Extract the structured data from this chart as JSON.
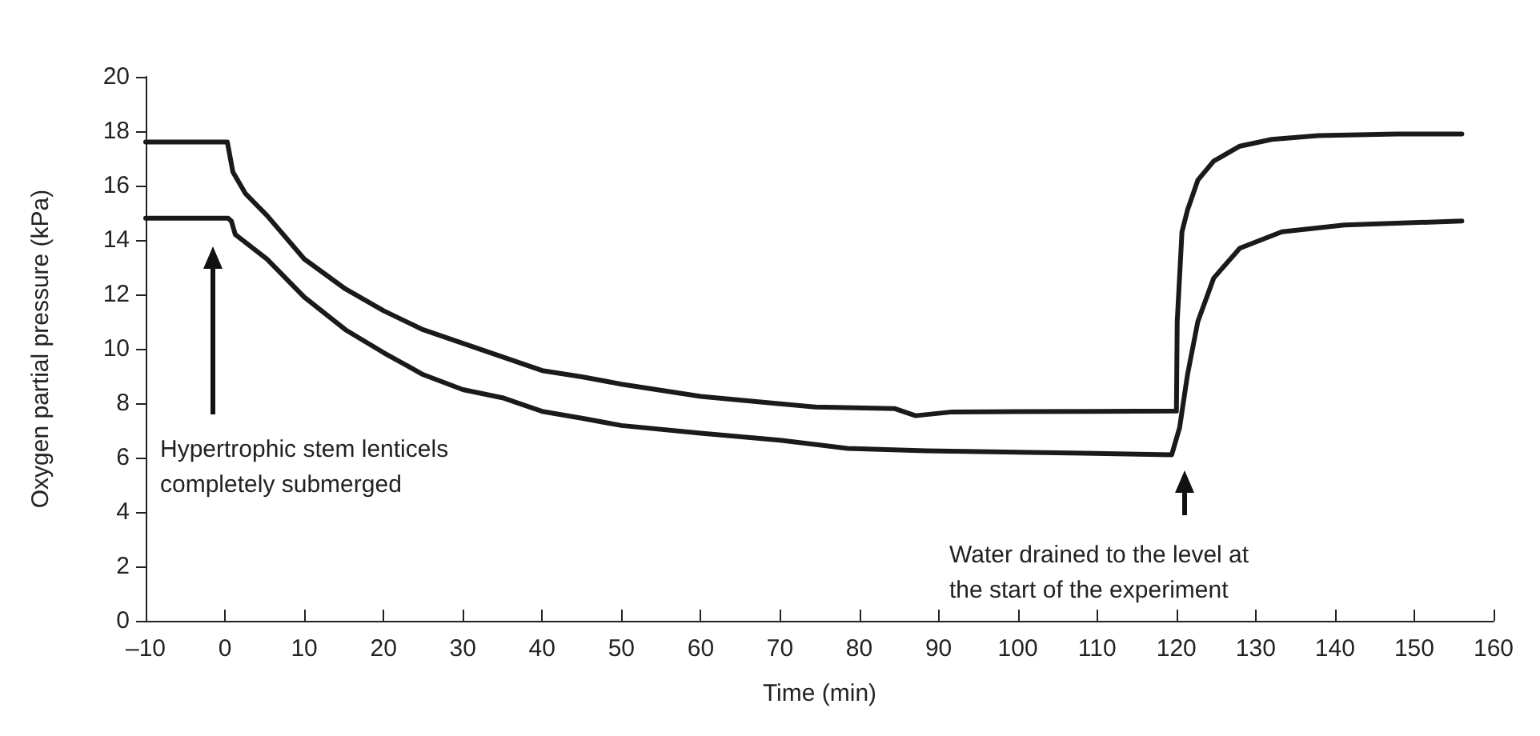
{
  "chart_data": {
    "type": "line",
    "xlabel": "Time (min)",
    "ylabel": "Oxygen partial pressure (kPa)",
    "xlim": [
      -10,
      160
    ],
    "xticks": [
      {
        "value": -10,
        "label": "–10"
      },
      0,
      10,
      20,
      30,
      40,
      50,
      60,
      70,
      80,
      90,
      100,
      110,
      120,
      130,
      140,
      150,
      160
    ],
    "ylim": [
      0,
      20
    ],
    "yticks": [
      0,
      2,
      4,
      6,
      8,
      10,
      12,
      14,
      16,
      18,
      20
    ],
    "grid": false,
    "marker": "none",
    "line_style": "solid",
    "annotations": [
      "Hypertrophic stem lenticels\ncompletely submerged",
      "Water drained to the level at\nthe start of the experiment"
    ],
    "series": [
      {
        "color": "#1a1a1a",
        "x": [
          -10,
          -0.3,
          0.3,
          1,
          2.6,
          5.3,
          10,
          15.2,
          20,
          25,
          30,
          35,
          40,
          45,
          50,
          60,
          70,
          74.5,
          84.5,
          87.1,
          91.7,
          110,
          120,
          120.1,
          120.7,
          121.4,
          122.7,
          124.7,
          128,
          132,
          137.9,
          147.8,
          156
        ],
        "values": [
          17.6,
          17.6,
          17.6,
          16.5,
          15.7,
          14.9,
          13.3,
          12.2,
          11.4,
          10.7,
          10.2,
          9.7,
          9.2,
          8.97,
          8.7,
          8.25,
          7.98,
          7.86,
          7.8,
          7.54,
          7.68,
          7.7,
          7.71,
          11,
          14.3,
          15.1,
          16.2,
          16.9,
          17.45,
          17.7,
          17.84,
          17.9,
          17.9
        ]
      },
      {
        "color": "#1a1a1a",
        "x": [
          -10,
          0.4,
          0.8,
          1.3,
          5.3,
          10,
          15.2,
          20,
          25,
          30,
          35,
          40,
          45,
          50,
          60,
          70,
          78.5,
          88.4,
          108.3,
          119.4,
          120.4,
          121.4,
          122.7,
          124.7,
          128,
          133.3,
          141.2,
          156
        ],
        "values": [
          14.8,
          14.8,
          14.7,
          14.2,
          13.3,
          11.9,
          10.7,
          9.86,
          9.05,
          8.5,
          8.2,
          7.7,
          7.45,
          7.18,
          6.9,
          6.64,
          6.34,
          6.25,
          6.16,
          6.1,
          7.1,
          9.05,
          11,
          12.6,
          13.7,
          14.3,
          14.55,
          14.7
        ]
      }
    ]
  }
}
